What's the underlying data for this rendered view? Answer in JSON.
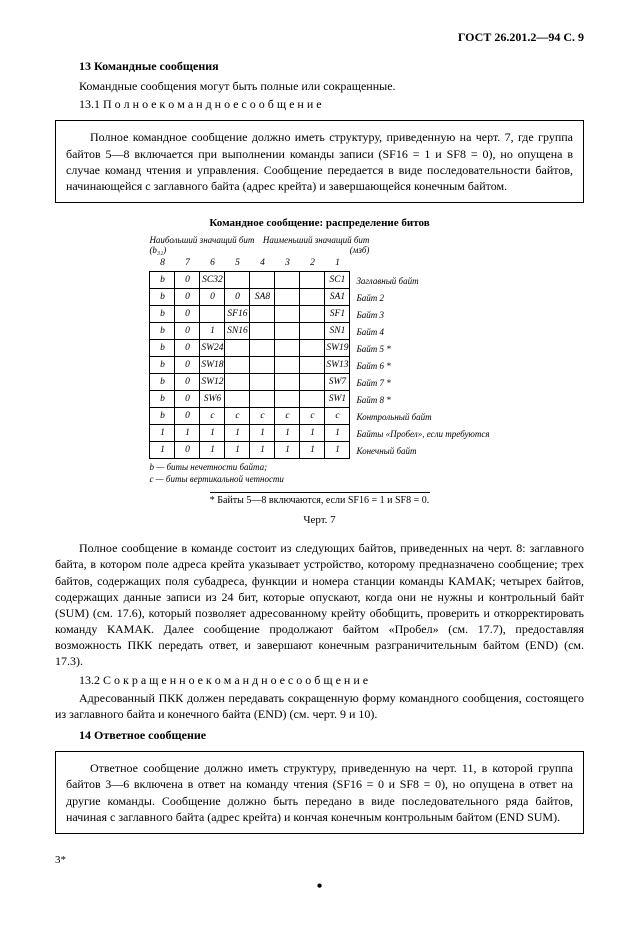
{
  "header": {
    "doc_id": "ГОСТ 26.201.2—94 С. 9"
  },
  "s13": {
    "title": "13 Командные сообщения",
    "intro": "Командные сообщения могут быть полные или сокращенные.",
    "sub1": "13.1 П о л н о е   к о м а н д н о е   с о о б щ е н и е"
  },
  "box1": {
    "text": "Полное командное сообщение должно иметь структуру, приведенную на черт. 7, где группа байтов 5—8 включается при выполнении команды записи (SF16 = 1 и SF8 = 0), но опущена в случае команд чтения и управления. Сообщение передается в виде последовательности байтов, начинающейся с заглавного байта (адрес крейта) и завершающейся конечным байтом."
  },
  "chart": {
    "title": "Командное сообщение: распределение битов",
    "top_left": "Наибольший значащий бит (b₃₂)",
    "top_right": "Наименьший значащий бит (мзб)",
    "cols": [
      "8",
      "7",
      "6",
      "5",
      "4",
      "3",
      "2",
      "1"
    ],
    "rows": [
      {
        "c": [
          "b",
          "0",
          "SC32",
          "",
          "",
          "",
          "",
          "SC1"
        ],
        "lbl": "Заглавный байт"
      },
      {
        "c": [
          "b",
          "0",
          "0",
          "0",
          "SA8",
          "",
          "",
          "SA1"
        ],
        "lbl": "Байт 2"
      },
      {
        "c": [
          "b",
          "0",
          "",
          "SF16",
          "",
          "",
          "",
          "SF1"
        ],
        "lbl": "Байт 3"
      },
      {
        "c": [
          "b",
          "0",
          "1",
          "SN16",
          "",
          "",
          "",
          "SN1"
        ],
        "lbl": "Байт 4"
      },
      {
        "c": [
          "b",
          "0",
          "SW24",
          "",
          "",
          "",
          "",
          "SW19"
        ],
        "lbl": "Байт 5 *"
      },
      {
        "c": [
          "b",
          "0",
          "SW18",
          "",
          "",
          "",
          "",
          "SW13"
        ],
        "lbl": "Байт 6 *"
      },
      {
        "c": [
          "b",
          "0",
          "SW12",
          "",
          "",
          "",
          "",
          "SW7"
        ],
        "lbl": "Байт 7 *"
      },
      {
        "c": [
          "b",
          "0",
          "SW6",
          "",
          "",
          "",
          "",
          "SW1"
        ],
        "lbl": "Байт 8 *"
      },
      {
        "c": [
          "b",
          "0",
          "c",
          "c",
          "c",
          "c",
          "c",
          "c"
        ],
        "lbl": "Контрольный байт"
      },
      {
        "c": [
          "1",
          "1",
          "1",
          "1",
          "1",
          "1",
          "1",
          "1"
        ],
        "lbl": "Байты «Пробел», если тре­буются"
      },
      {
        "c": [
          "1",
          "0",
          "1",
          "1",
          "1",
          "1",
          "1",
          "1"
        ],
        "lbl": "Конечный байт"
      }
    ],
    "legend1": "b — биты нечетности байта;",
    "legend2": "c — биты вертикальной четности",
    "footnote": "* Байты 5—8 включаются, если SF16 = 1 и SF8 = 0.",
    "num": "Черт. 7"
  },
  "body1": {
    "p1": "Полное сообщение в команде состоит из следующих байтов, приведенных на черт. 8: заглавного байта, в котором поле адреса крейта указывает устройство, которому предназначено сообщение; трех байтов, содержащих поля субадреса, функции и номера станции команды КАМАК; четырех байтов, содержащих данные записи из 24 бит, которые опускают, когда они не нужны и контрольный байт (SUM) (см. 17.6), который позволяет адресованному крейту обобщить, проверить и откорректировать команду КАМАК. Далее сообщение продолжают байтом «Пробел» (см. 17.7), предоставляя возможность ПКК передать ответ, и завершают конечным разграничительным байтом (END) (см. 17.3).",
    "sub2": "13.2 С о к р а щ е н н о е   к о м а н д н о е   с о о б щ е н и е",
    "p2": "Адресованный ПКК должен передавать сокращенную форму командного сообщения, состоящего из заглавного байта и конечного байта  (END) (см. черт. 9 и 10)."
  },
  "s14": {
    "title": "14 Ответное сообщение"
  },
  "box2": {
    "text": "Ответное сообщение должно иметь структуру, приведенную на черт. 11, в которой группа байтов 3—6 включена в ответ на команду чтения (SF16 = 0 и SF8 = 0), но опущена в ответ на другие команды. Сообщение должно быть передано в виде последовательного ряда байтов, начиная с заглавного байта (адрес крейта) и кончая конечным контрольным байтом (END SUM)."
  },
  "footer": {
    "sig": "3*"
  }
}
